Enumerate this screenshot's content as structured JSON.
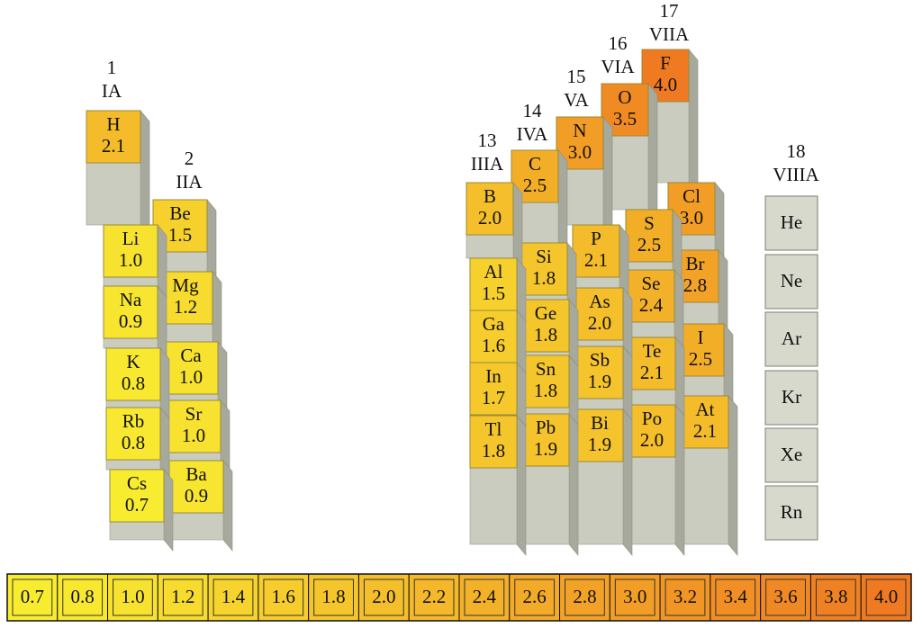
{
  "groups": [
    {
      "number": "1",
      "label": "IA",
      "elements": [
        {
          "symbol": "H",
          "value": "2.1"
        },
        {
          "symbol": "Li",
          "value": "1.0"
        },
        {
          "symbol": "Na",
          "value": "0.9"
        },
        {
          "symbol": "K",
          "value": "0.8"
        },
        {
          "symbol": "Rb",
          "value": "0.8"
        },
        {
          "symbol": "Cs",
          "value": "0.7"
        }
      ]
    },
    {
      "number": "2",
      "label": "IIA",
      "elements": [
        {
          "symbol": "Be",
          "value": "1.5"
        },
        {
          "symbol": "Mg",
          "value": "1.2"
        },
        {
          "symbol": "Ca",
          "value": "1.0"
        },
        {
          "symbol": "Sr",
          "value": "1.0"
        },
        {
          "symbol": "Ba",
          "value": "0.9"
        }
      ]
    },
    {
      "number": "13",
      "label": "IIIA",
      "elements": [
        {
          "symbol": "B",
          "value": "2.0"
        },
        {
          "symbol": "Al",
          "value": "1.5"
        },
        {
          "symbol": "Ga",
          "value": "1.6"
        },
        {
          "symbol": "In",
          "value": "1.7"
        },
        {
          "symbol": "Tl",
          "value": "1.8"
        }
      ]
    },
    {
      "number": "14",
      "label": "IVA",
      "elements": [
        {
          "symbol": "C",
          "value": "2.5"
        },
        {
          "symbol": "Si",
          "value": "1.8"
        },
        {
          "symbol": "Ge",
          "value": "1.8"
        },
        {
          "symbol": "Sn",
          "value": "1.8"
        },
        {
          "symbol": "Pb",
          "value": "1.9"
        }
      ]
    },
    {
      "number": "15",
      "label": "VA",
      "elements": [
        {
          "symbol": "N",
          "value": "3.0"
        },
        {
          "symbol": "P",
          "value": "2.1"
        },
        {
          "symbol": "As",
          "value": "2.0"
        },
        {
          "symbol": "Sb",
          "value": "1.9"
        },
        {
          "symbol": "Bi",
          "value": "1.9"
        }
      ]
    },
    {
      "number": "16",
      "label": "VIA",
      "elements": [
        {
          "symbol": "O",
          "value": "3.5"
        },
        {
          "symbol": "S",
          "value": "2.5"
        },
        {
          "symbol": "Se",
          "value": "2.4"
        },
        {
          "symbol": "Te",
          "value": "2.1"
        },
        {
          "symbol": "Po",
          "value": "2.0"
        }
      ]
    },
    {
      "number": "17",
      "label": "VIIA",
      "elements": [
        {
          "symbol": "F",
          "value": "4.0"
        },
        {
          "symbol": "Cl",
          "value": "3.0"
        },
        {
          "symbol": "Br",
          "value": "2.8"
        },
        {
          "symbol": "I",
          "value": "2.5"
        },
        {
          "symbol": "At",
          "value": "2.1"
        }
      ]
    },
    {
      "number": "18",
      "label": "VIIIA",
      "elements": [
        {
          "symbol": "He"
        },
        {
          "symbol": "Ne"
        },
        {
          "symbol": "Ar"
        },
        {
          "symbol": "Kr"
        },
        {
          "symbol": "Xe"
        },
        {
          "symbol": "Rn"
        }
      ]
    }
  ],
  "scale": [
    "0.7",
    "0.8",
    "1.0",
    "1.2",
    "1.4",
    "1.6",
    "1.8",
    "2.0",
    "2.2",
    "2.4",
    "2.6",
    "2.8",
    "3.0",
    "3.2",
    "3.4",
    "3.6",
    "3.8",
    "4.0"
  ]
}
